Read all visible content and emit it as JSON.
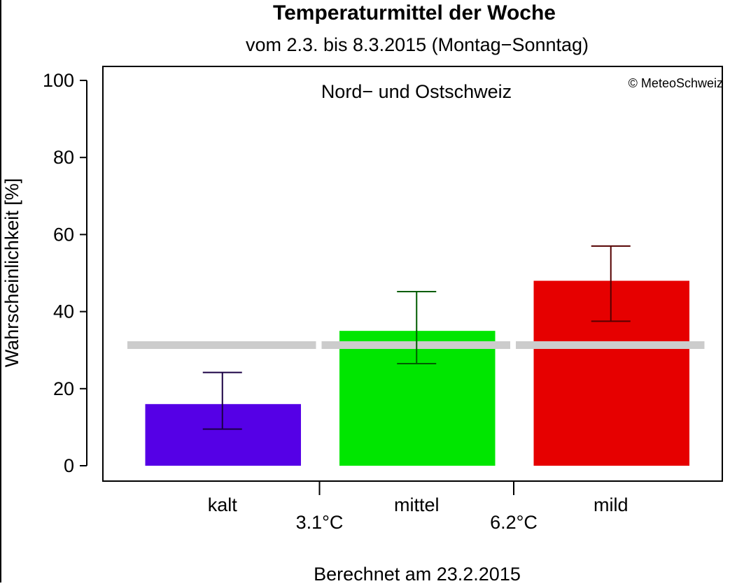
{
  "chart_data": {
    "type": "bar",
    "title": "Temperaturmittel der Woche",
    "subtitle": "vom 2.3. bis 8.3.2015 (Montag−Sonntag)",
    "region": "Nord− und Ostschweiz",
    "copyright": "© MeteoSchweiz",
    "ylabel": "Wahrscheinlichkeit [%]",
    "footer": "Berechnet am 23.2.2015",
    "ylim": [
      0,
      100
    ],
    "yticks": [
      0,
      20,
      40,
      60,
      80,
      100
    ],
    "categories": [
      "kalt",
      "mittel",
      "mild"
    ],
    "values": [
      16,
      35,
      48
    ],
    "error_low": [
      9.5,
      26.5,
      37.5
    ],
    "error_high": [
      24.2,
      45.2,
      57
    ],
    "climatology": 33.3,
    "thresholds": [
      "3.1°C",
      "6.2°C"
    ],
    "grid": false,
    "colors": {
      "bars": [
        "#5500e6",
        "#00e600",
        "#e60000"
      ],
      "errors": [
        "#1a0044",
        "#005c00",
        "#550000"
      ],
      "climatology": "#cccccc"
    }
  }
}
